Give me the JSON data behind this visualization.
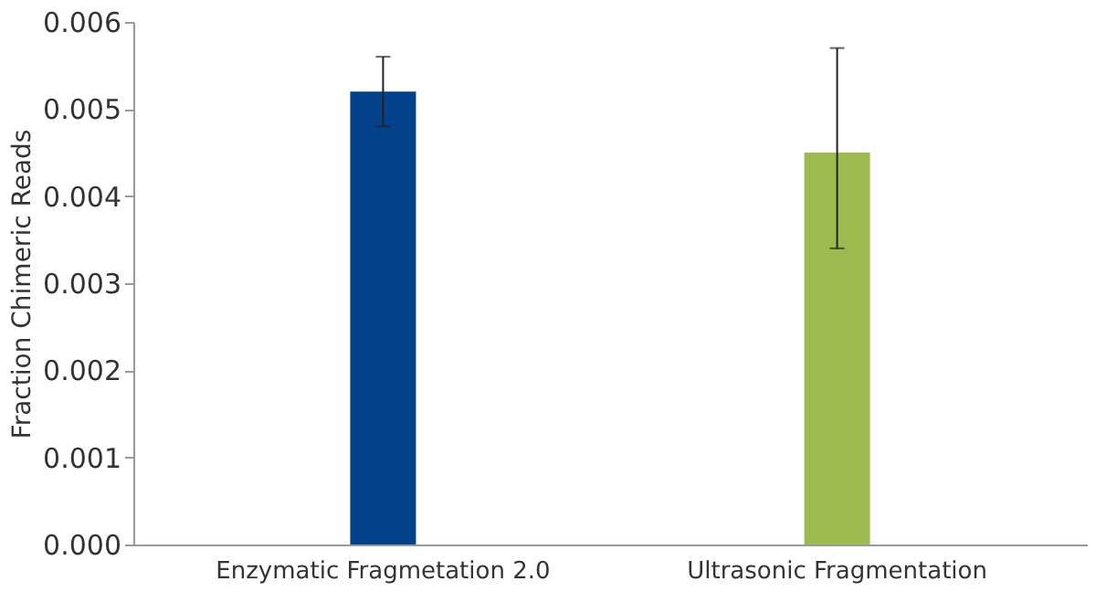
{
  "chart_data": {
    "type": "bar",
    "ylabel": "Fraction Chimeric Reads",
    "categories": [
      "Enzymatic Fragmetation 2.0",
      "Ultrasonic Fragmentation"
    ],
    "values": [
      0.0052,
      0.0045
    ],
    "colors": [
      "#03428a",
      "#9bbb4f"
    ],
    "errors": [
      [
        0.0048,
        0.0056
      ],
      [
        0.0034,
        0.0057
      ]
    ],
    "ylim": [
      0,
      0.006
    ],
    "yticks": [
      {
        "value": 0,
        "label": "0.000"
      },
      {
        "value": 0.001,
        "label": "0.001"
      },
      {
        "value": 0.002,
        "label": "0.002"
      },
      {
        "value": 0.003,
        "label": "0.003"
      },
      {
        "value": 0.004,
        "label": "0.004"
      },
      {
        "value": 0.005,
        "label": "0.005"
      },
      {
        "value": 0.006,
        "label": "0.006"
      }
    ],
    "grid": false
  }
}
